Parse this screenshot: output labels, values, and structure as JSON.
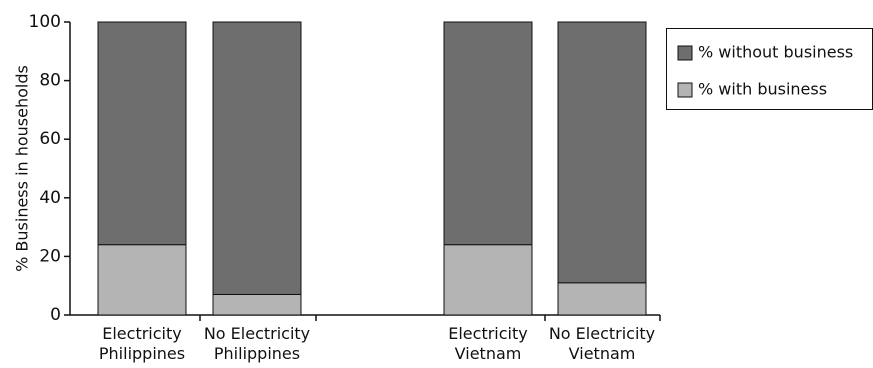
{
  "chart_data": {
    "type": "bar",
    "stacked": true,
    "title": "",
    "xlabel": "",
    "ylabel": "% Business in households",
    "ylim": [
      0,
      100
    ],
    "yticks": [
      0,
      20,
      40,
      60,
      80,
      100
    ],
    "grid": false,
    "legend_position": "right",
    "categories": [
      [
        "Electricity",
        "Philippines"
      ],
      [
        "No Electricity",
        "Philippines"
      ],
      [
        "Electricity",
        "Vietnam"
      ],
      [
        "No Electricity",
        "Vietnam"
      ]
    ],
    "series": [
      {
        "name": "% with business",
        "color": "#b4b4b4",
        "values": [
          24,
          7,
          24,
          11
        ]
      },
      {
        "name": "% without business",
        "color": "#6e6e6e",
        "values": [
          76,
          93,
          76,
          89
        ]
      }
    ],
    "legend_order": [
      "% without business",
      "% with business"
    ]
  }
}
